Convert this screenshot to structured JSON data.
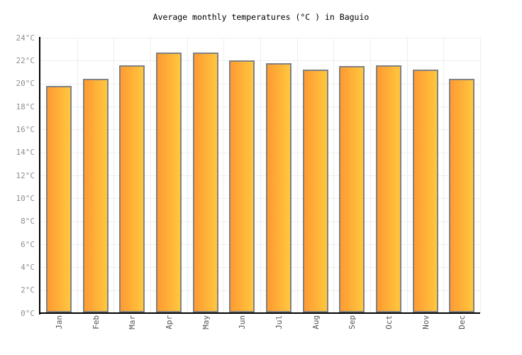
{
  "title": "Average monthly temperatures (°C ) in Baguio",
  "chart_data": {
    "type": "bar",
    "title": "Average monthly temperatures (°C ) in Baguio",
    "xlabel": "",
    "ylabel": "",
    "unit": "°C",
    "categories": [
      "Jan",
      "Feb",
      "Mar",
      "Apr",
      "May",
      "Jun",
      "Jul",
      "Aug",
      "Sep",
      "Oct",
      "Nov",
      "Dec"
    ],
    "values": [
      19.8,
      20.4,
      21.6,
      22.7,
      22.7,
      22.0,
      21.8,
      21.2,
      21.5,
      21.6,
      21.2,
      20.4
    ],
    "ylim": [
      0,
      24
    ],
    "ytick_step": 2,
    "yticks": [
      "0°C",
      "2°C",
      "4°C",
      "6°C",
      "8°C",
      "10°C",
      "12°C",
      "14°C",
      "16°C",
      "18°C",
      "20°C",
      "22°C",
      "24°C"
    ],
    "grid": true,
    "legend_position": "none",
    "colors": {
      "bar_gradient_left": "#ff9a32",
      "bar_gradient_right": "#ffc73e",
      "bar_border": "#828282",
      "axis": "#000000",
      "gridline": "#eeeeee",
      "ytick_label": "#909090",
      "xtick_label": "#555555",
      "title": "#000000",
      "background": "#ffffff"
    }
  }
}
